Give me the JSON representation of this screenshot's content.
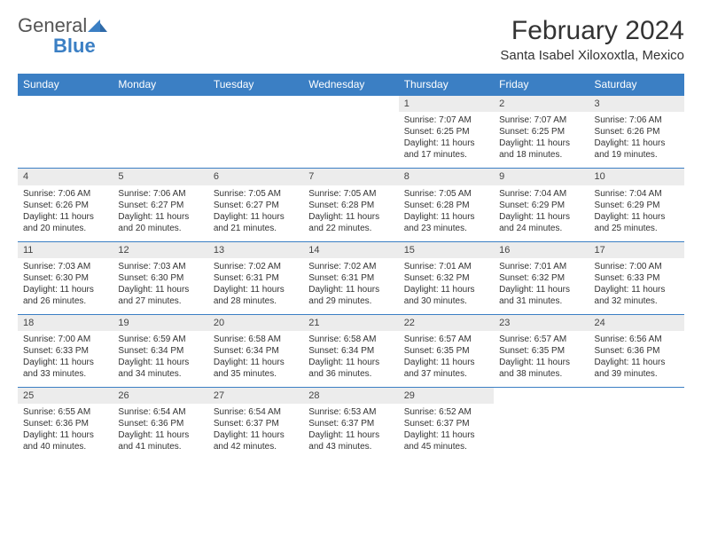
{
  "logo": {
    "text_gray": "General",
    "text_blue": "Blue"
  },
  "title": "February 2024",
  "location": "Santa Isabel Xiloxoxtla, Mexico",
  "colors": {
    "header_bg": "#3b7fc4",
    "header_text": "#ffffff",
    "daynum_bg": "#ececec",
    "row_border": "#3b7fc4",
    "text": "#333333",
    "logo_gray": "#555555",
    "logo_blue": "#3b7fc4",
    "page_bg": "#ffffff"
  },
  "fonts": {
    "month_title_pt": 30,
    "location_pt": 15,
    "day_header_pt": 12,
    "daynum_pt": 11,
    "body_pt": 10
  },
  "day_headers": [
    "Sunday",
    "Monday",
    "Tuesday",
    "Wednesday",
    "Thursday",
    "Friday",
    "Saturday"
  ],
  "weeks": [
    [
      null,
      null,
      null,
      null,
      {
        "n": "1",
        "sr": "7:07 AM",
        "ss": "6:25 PM",
        "dl": "11 hours and 17 minutes."
      },
      {
        "n": "2",
        "sr": "7:07 AM",
        "ss": "6:25 PM",
        "dl": "11 hours and 18 minutes."
      },
      {
        "n": "3",
        "sr": "7:06 AM",
        "ss": "6:26 PM",
        "dl": "11 hours and 19 minutes."
      }
    ],
    [
      {
        "n": "4",
        "sr": "7:06 AM",
        "ss": "6:26 PM",
        "dl": "11 hours and 20 minutes."
      },
      {
        "n": "5",
        "sr": "7:06 AM",
        "ss": "6:27 PM",
        "dl": "11 hours and 20 minutes."
      },
      {
        "n": "6",
        "sr": "7:05 AM",
        "ss": "6:27 PM",
        "dl": "11 hours and 21 minutes."
      },
      {
        "n": "7",
        "sr": "7:05 AM",
        "ss": "6:28 PM",
        "dl": "11 hours and 22 minutes."
      },
      {
        "n": "8",
        "sr": "7:05 AM",
        "ss": "6:28 PM",
        "dl": "11 hours and 23 minutes."
      },
      {
        "n": "9",
        "sr": "7:04 AM",
        "ss": "6:29 PM",
        "dl": "11 hours and 24 minutes."
      },
      {
        "n": "10",
        "sr": "7:04 AM",
        "ss": "6:29 PM",
        "dl": "11 hours and 25 minutes."
      }
    ],
    [
      {
        "n": "11",
        "sr": "7:03 AM",
        "ss": "6:30 PM",
        "dl": "11 hours and 26 minutes."
      },
      {
        "n": "12",
        "sr": "7:03 AM",
        "ss": "6:30 PM",
        "dl": "11 hours and 27 minutes."
      },
      {
        "n": "13",
        "sr": "7:02 AM",
        "ss": "6:31 PM",
        "dl": "11 hours and 28 minutes."
      },
      {
        "n": "14",
        "sr": "7:02 AM",
        "ss": "6:31 PM",
        "dl": "11 hours and 29 minutes."
      },
      {
        "n": "15",
        "sr": "7:01 AM",
        "ss": "6:32 PM",
        "dl": "11 hours and 30 minutes."
      },
      {
        "n": "16",
        "sr": "7:01 AM",
        "ss": "6:32 PM",
        "dl": "11 hours and 31 minutes."
      },
      {
        "n": "17",
        "sr": "7:00 AM",
        "ss": "6:33 PM",
        "dl": "11 hours and 32 minutes."
      }
    ],
    [
      {
        "n": "18",
        "sr": "7:00 AM",
        "ss": "6:33 PM",
        "dl": "11 hours and 33 minutes."
      },
      {
        "n": "19",
        "sr": "6:59 AM",
        "ss": "6:34 PM",
        "dl": "11 hours and 34 minutes."
      },
      {
        "n": "20",
        "sr": "6:58 AM",
        "ss": "6:34 PM",
        "dl": "11 hours and 35 minutes."
      },
      {
        "n": "21",
        "sr": "6:58 AM",
        "ss": "6:34 PM",
        "dl": "11 hours and 36 minutes."
      },
      {
        "n": "22",
        "sr": "6:57 AM",
        "ss": "6:35 PM",
        "dl": "11 hours and 37 minutes."
      },
      {
        "n": "23",
        "sr": "6:57 AM",
        "ss": "6:35 PM",
        "dl": "11 hours and 38 minutes."
      },
      {
        "n": "24",
        "sr": "6:56 AM",
        "ss": "6:36 PM",
        "dl": "11 hours and 39 minutes."
      }
    ],
    [
      {
        "n": "25",
        "sr": "6:55 AM",
        "ss": "6:36 PM",
        "dl": "11 hours and 40 minutes."
      },
      {
        "n": "26",
        "sr": "6:54 AM",
        "ss": "6:36 PM",
        "dl": "11 hours and 41 minutes."
      },
      {
        "n": "27",
        "sr": "6:54 AM",
        "ss": "6:37 PM",
        "dl": "11 hours and 42 minutes."
      },
      {
        "n": "28",
        "sr": "6:53 AM",
        "ss": "6:37 PM",
        "dl": "11 hours and 43 minutes."
      },
      {
        "n": "29",
        "sr": "6:52 AM",
        "ss": "6:37 PM",
        "dl": "11 hours and 45 minutes."
      },
      null,
      null
    ]
  ],
  "labels": {
    "sunrise": "Sunrise:",
    "sunset": "Sunset:",
    "daylight": "Daylight:"
  }
}
